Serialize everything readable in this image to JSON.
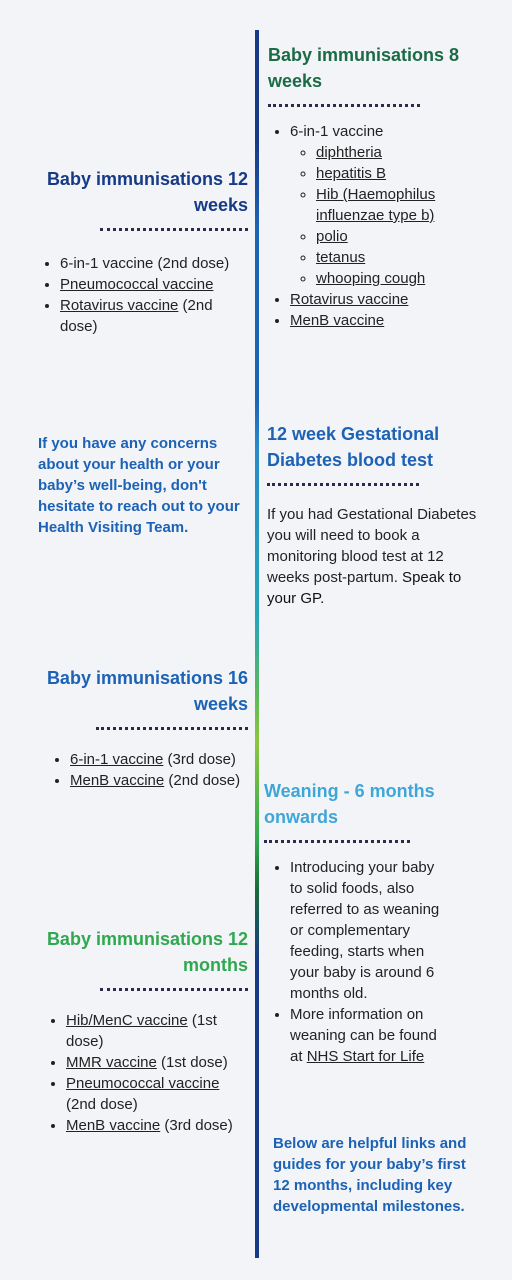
{
  "colors": {
    "navy": "#173a86",
    "teal_green": "#1b6b45",
    "blue": "#1c62b5",
    "light_blue": "#3fa6d8",
    "green": "#2fa84f"
  },
  "b8": {
    "title": "Baby immunisations 8 weeks",
    "items": [
      {
        "text": "6-in-1 vaccine",
        "sub": [
          "diphtheria",
          "hepatitis B",
          "Hib (Haemophilus influenzae type b)",
          "polio",
          "tetanus",
          "whooping cough"
        ]
      },
      {
        "link": "Rotavirus vaccine"
      },
      {
        "link": "MenB vaccine"
      }
    ]
  },
  "b12w": {
    "title": "Baby immunisations 12 weeks",
    "item1": "6-in-1 vaccine (2nd dose)",
    "item2_link": "Pneumococcal vaccine",
    "item3_link": "Rotavirus vaccine",
    "item3_rest": " (2nd dose)"
  },
  "gest": {
    "title": "12  week Gestational Diabetes blood test",
    "text1": "If you had Gestational Diabetes you will need to book a monitoring blood test at 12 weeks post-partum.",
    "text2": " Speak to your GP."
  },
  "concerns": {
    "text": "If you have any concerns about your health or your baby’s well-being, don't hesitate to reach out to your Health Visiting Team."
  },
  "b16": {
    "title": "Baby immunisations 16 weeks",
    "item1_link": "6-in-1 vaccine",
    "item1_rest": " (3rd dose)",
    "item2_link": "MenB vaccine",
    "item2_rest": " (2nd dose)"
  },
  "wean": {
    "title": "Weaning - 6 months onwards",
    "item1": "Introducing your baby to solid foods, also referred to as weaning or complementary feeding, starts when your baby is around 6 months old.",
    "item2_text": "More information on weaning can be found at ",
    "item2_link": "NHS Start for Life"
  },
  "b12m": {
    "title": "Baby immunisations 12 months",
    "item1_link": "Hib/MenC vaccine",
    "item1_rest": " (1st dose)",
    "item2_link": "MMR vaccine",
    "item2_rest": " (1st dose)",
    "item3_link": "Pneumococcal vaccine",
    "item3_rest": " (2nd dose)",
    "item4_link": "MenB vaccine",
    "item4_rest": " (3rd dose)"
  },
  "links_note": {
    "text": "Below are helpful links and guides for your baby’s first 12 months, including key developmental milestones."
  }
}
